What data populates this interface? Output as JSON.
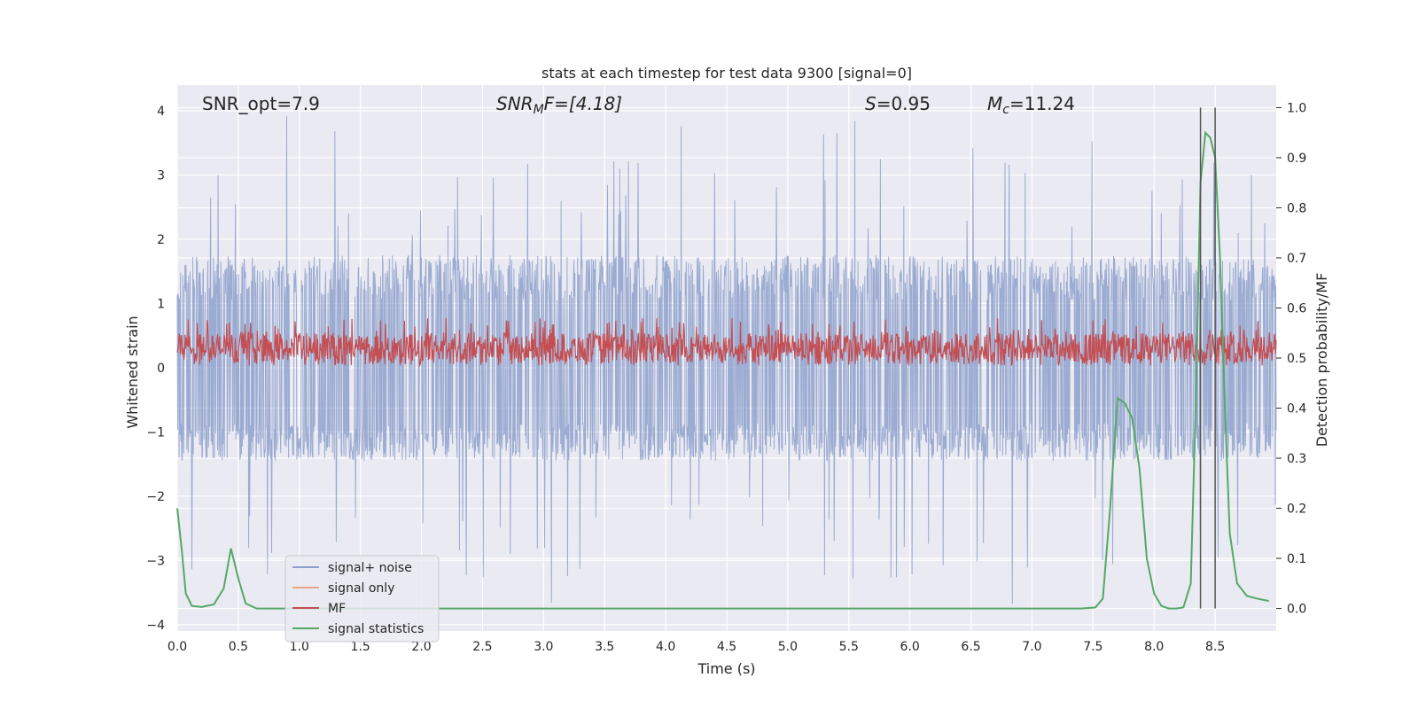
{
  "chart_data": {
    "type": "line",
    "title": "stats at each timestep for test data 9300 [signal=0]",
    "xlabel": "Time (s)",
    "ylabel_left": "Whitened strain",
    "ylabel_right": "Detection probability/MF",
    "xlim": [
      0.0,
      9.0
    ],
    "ylim_left": [
      -4.1,
      4.4
    ],
    "ylim_right": [
      -0.045,
      1.045
    ],
    "x_ticks": [
      "0.0",
      "0.5",
      "1.0",
      "1.5",
      "2.0",
      "2.5",
      "3.0",
      "3.5",
      "4.0",
      "4.5",
      "5.0",
      "5.5",
      "6.0",
      "6.5",
      "7.0",
      "7.5",
      "8.0",
      "8.5"
    ],
    "y_ticks_left": [
      "−4",
      "−3",
      "−2",
      "−1",
      "0",
      "1",
      "2",
      "3",
      "4"
    ],
    "y_ticks_right": [
      "0.0",
      "0.1",
      "0.2",
      "0.3",
      "0.4",
      "0.5",
      "0.6",
      "0.7",
      "0.8",
      "0.9",
      "1.0"
    ],
    "grid": true,
    "annotations": {
      "snr_opt": "SNR_opt=7.9",
      "snr_mf_sym": "SNR",
      "snr_mf_sub": "M",
      "snr_mf_rest": "F=[4.18]",
      "s_sym": "S",
      "s_rest": "=0.95",
      "mc_sym": "M",
      "mc_sub": "c",
      "mc_rest": "=11.24"
    },
    "legend": {
      "position": "lower-left",
      "entries": [
        {
          "label": "signal+ noise",
          "color": "#8da0cb"
        },
        {
          "label": "signal only",
          "color": "#e8a58a"
        },
        {
          "label": "MF",
          "color": "#c44e52"
        },
        {
          "label": "signal statistics",
          "color": "#55a868"
        }
      ]
    },
    "series": [
      {
        "name": "signal+ noise",
        "axis": "left",
        "style": "noise",
        "color": "#8da0cb",
        "envelope": {
          "typical_max": 1.75,
          "typical_min": -1.45,
          "peak_max": 4.0,
          "peak_min": -3.7
        }
      },
      {
        "name": "MF",
        "axis": "right",
        "style": "noise",
        "color": "#c44e52",
        "envelope": {
          "baseline": 0.5,
          "typical_max": 0.55,
          "typical_min": 0.49,
          "peak_max": 0.58,
          "peak_min": 0.485
        }
      },
      {
        "name": "signal statistics",
        "axis": "right",
        "color": "#55a868",
        "x": [
          0.0,
          0.04,
          0.07,
          0.12,
          0.2,
          0.3,
          0.38,
          0.44,
          0.5,
          0.56,
          0.65,
          1.0,
          2.0,
          3.0,
          4.0,
          5.0,
          6.0,
          7.0,
          7.4,
          7.52,
          7.58,
          7.64,
          7.7,
          7.76,
          7.82,
          7.88,
          7.94,
          8.0,
          8.06,
          8.12,
          8.18,
          8.24,
          8.3,
          8.34,
          8.38,
          8.42,
          8.46,
          8.5,
          8.54,
          8.58,
          8.62,
          8.68,
          8.76,
          8.84,
          8.94
        ],
        "values": [
          0.2,
          0.11,
          0.03,
          0.005,
          0.003,
          0.008,
          0.04,
          0.12,
          0.06,
          0.01,
          0.0,
          0.0,
          0.0,
          0.0,
          0.0,
          0.0,
          0.0,
          0.0,
          0.0,
          0.002,
          0.02,
          0.2,
          0.42,
          0.41,
          0.38,
          0.28,
          0.1,
          0.03,
          0.005,
          0.0,
          0.0,
          0.002,
          0.05,
          0.4,
          0.85,
          0.95,
          0.94,
          0.9,
          0.7,
          0.4,
          0.15,
          0.05,
          0.025,
          0.02,
          0.015
        ]
      }
    ],
    "vertical_lines": [
      {
        "x": 8.38,
        "y_right": [
          0.0,
          1.0
        ],
        "color": "#555555"
      },
      {
        "x": 8.5,
        "y_right": [
          0.0,
          1.0
        ],
        "color": "#555555"
      }
    ]
  }
}
